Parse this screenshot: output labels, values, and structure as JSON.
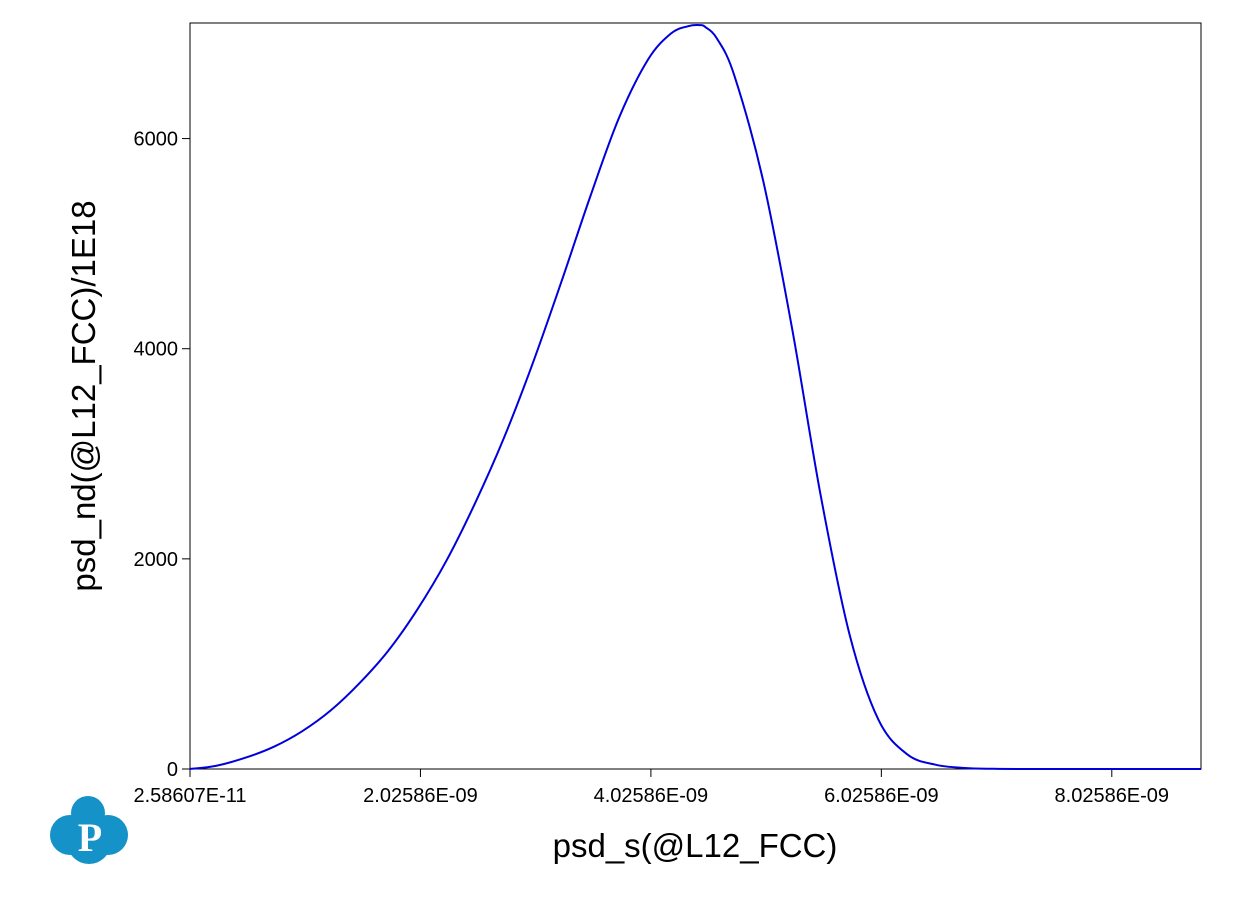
{
  "chart_data": {
    "type": "line",
    "title": "",
    "xlabel": "psd_s(@L12_FCC)",
    "ylabel": "psd_nd(@L12_FCC)/1E18",
    "xlim": [
      2.58607e-11,
      8.8e-09
    ],
    "ylim": [
      0,
      7100
    ],
    "x_ticks": [
      2.58607e-11,
      2.02586e-09,
      4.02586e-09,
      6.02586e-09,
      8.02586e-09
    ],
    "x_tick_labels": [
      "2.58607E-11",
      "2.02586E-09",
      "4.02586E-09",
      "6.02586E-09",
      "8.02586E-09"
    ],
    "y_ticks": [
      0,
      2000,
      4000,
      6000
    ],
    "y_tick_labels": [
      "0",
      "2000",
      "4000",
      "6000"
    ],
    "grid": false,
    "series_color": "#0000dd",
    "series": [
      {
        "x": [
          2.58607e-11,
          2.5e-10,
          5e-10,
          7.5e-10,
          1e-09,
          1.25e-09,
          1.5e-09,
          1.75e-09,
          2e-09,
          2.25e-09,
          2.5e-09,
          2.75e-09,
          3e-09,
          3.25e-09,
          3.5e-09,
          3.75e-09,
          4e-09,
          4.2e-09,
          4.35e-09,
          4.45e-09,
          4.5e-09,
          4.6e-09,
          4.75e-09,
          5e-09,
          5.25e-09,
          5.5e-09,
          5.75e-09,
          6e-09,
          6.25e-09,
          6.5e-09,
          6.75e-09,
          7e-09,
          7.25e-09,
          7.5e-09,
          8e-09,
          8.8e-09
        ],
        "y": [
          0,
          30,
          105,
          210,
          360,
          560,
          820,
          1130,
          1520,
          1980,
          2530,
          3150,
          3860,
          4640,
          5450,
          6200,
          6750,
          7000,
          7070,
          7080,
          7060,
          6950,
          6600,
          5600,
          4200,
          2600,
          1280,
          470,
          140,
          40,
          10,
          2,
          0,
          0,
          0,
          0
        ]
      }
    ]
  }
}
